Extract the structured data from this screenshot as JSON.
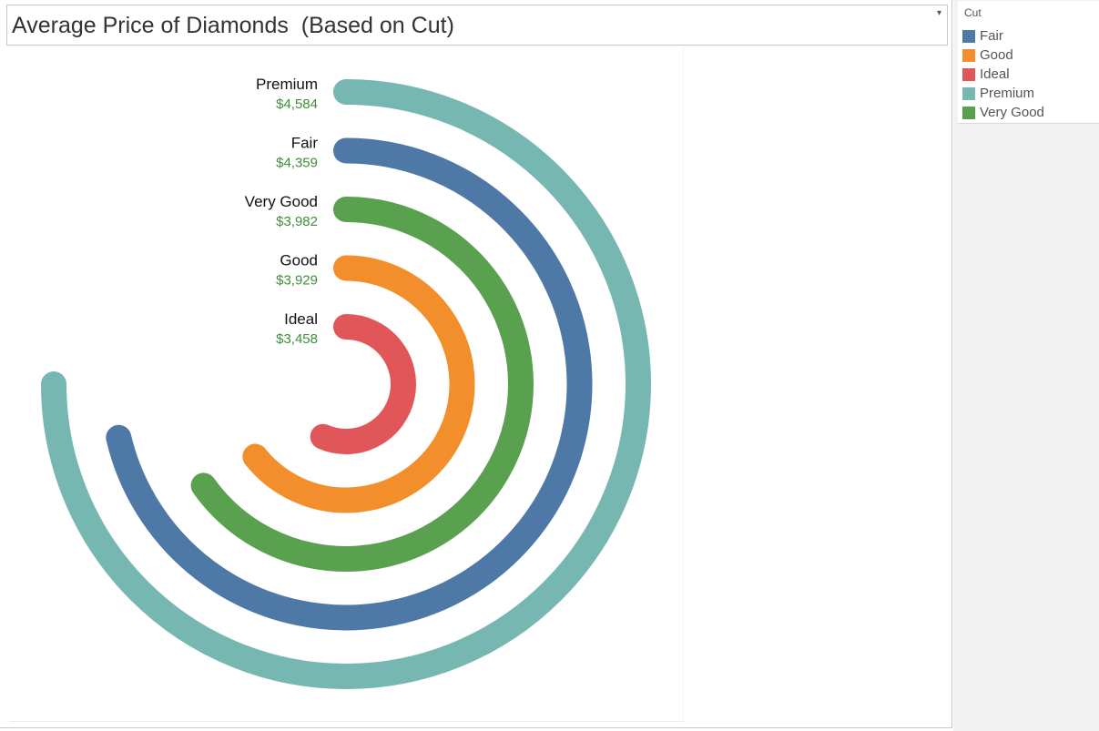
{
  "title": "Average Price of Diamonds  (Based on Cut)",
  "legend": {
    "title": "Cut",
    "items": [
      {
        "label": "Fair",
        "color": "#4e79a7"
      },
      {
        "label": "Good",
        "color": "#f28e2b"
      },
      {
        "label": "Ideal",
        "color": "#e15759"
      },
      {
        "label": "Premium",
        "color": "#76b7b2"
      },
      {
        "label": "Very Good",
        "color": "#59a14f"
      }
    ]
  },
  "chart_data": {
    "type": "radial bar",
    "measure": "Average Price",
    "dimension": "Cut",
    "value_label_color": "#3f8f3a",
    "series": [
      {
        "name": "Premium",
        "value": 4584,
        "value_label": "$4,584",
        "color": "#76b7b2"
      },
      {
        "name": "Fair",
        "value": 4359,
        "value_label": "$4,359",
        "color": "#4e79a7"
      },
      {
        "name": "Very Good",
        "value": 3982,
        "value_label": "$3,982",
        "color": "#59a14f"
      },
      {
        "name": "Good",
        "value": 3929,
        "value_label": "$3,929",
        "color": "#f28e2b"
      },
      {
        "name": "Ideal",
        "value": 3458,
        "value_label": "$3,458",
        "color": "#e15759"
      }
    ]
  }
}
